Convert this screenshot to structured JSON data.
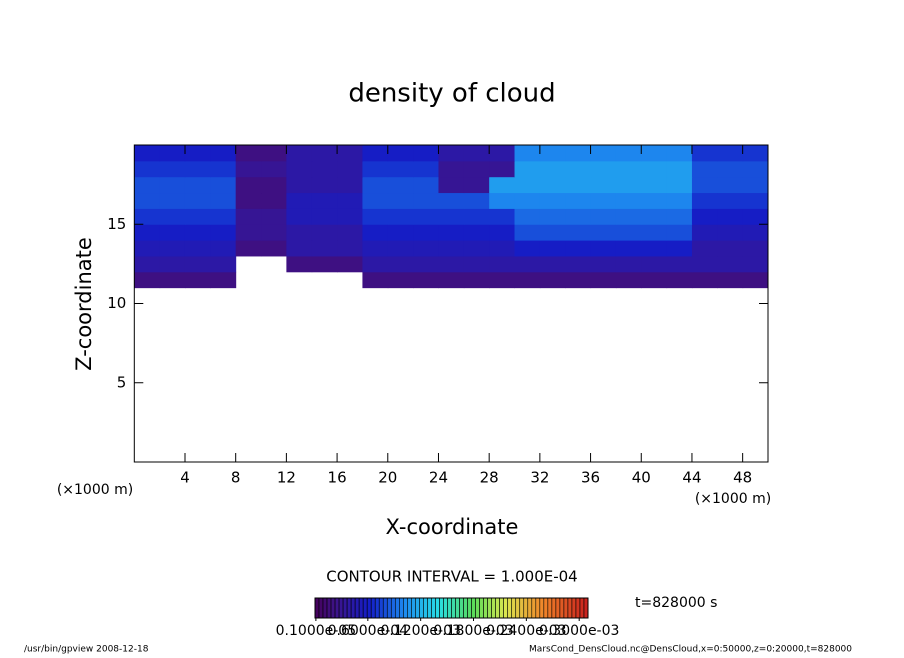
{
  "chart_data": {
    "type": "heatmap",
    "title": "density of cloud",
    "xlabel": "X-coordinate",
    "ylabel": "Z-coordinate",
    "xunit": "(×1000 m)",
    "yunit": "(×1000 m)",
    "xlim": [
      0,
      50
    ],
    "ylim": [
      0,
      20
    ],
    "xticks": [
      4,
      8,
      12,
      16,
      20,
      24,
      28,
      32,
      36,
      40,
      44,
      48
    ],
    "yticks": [
      5,
      10,
      15
    ],
    "x_edges": [
      0,
      2,
      4,
      6,
      8,
      10,
      12,
      14,
      16,
      18,
      20,
      22,
      24,
      26,
      28,
      30,
      32,
      34,
      36,
      38,
      40,
      42,
      44,
      46,
      48,
      50
    ],
    "z_edges": [
      11,
      12,
      13,
      14,
      15,
      16,
      17,
      18,
      19,
      20
    ],
    "values": [
      [
        2e-05,
        2e-05,
        2e-05,
        2e-05,
        null,
        null,
        null,
        null,
        null,
        2e-05,
        2e-05,
        2e-05,
        2e-05,
        2e-05,
        2e-05,
        2e-05,
        2e-05,
        2e-05,
        2e-05,
        2e-05,
        2e-05,
        2e-05,
        2e-05,
        2e-05,
        2e-05
      ],
      [
        4e-05,
        4e-05,
        4e-05,
        4e-05,
        null,
        null,
        2e-05,
        2e-05,
        2e-05,
        4e-05,
        4e-05,
        4e-05,
        4e-05,
        4e-05,
        4e-05,
        4e-05,
        4e-05,
        4e-05,
        4e-05,
        4e-05,
        4e-05,
        4e-05,
        4e-05,
        4e-05,
        4e-05
      ],
      [
        5e-05,
        5e-05,
        5e-05,
        5e-05,
        2e-05,
        2e-05,
        4e-05,
        4e-05,
        4e-05,
        5e-05,
        5e-05,
        5e-05,
        5e-05,
        5e-05,
        5e-05,
        6e-05,
        6e-05,
        6e-05,
        6e-05,
        6e-05,
        6e-05,
        6e-05,
        4e-05,
        4e-05,
        4e-05
      ],
      [
        6e-05,
        6e-05,
        6e-05,
        6e-05,
        3e-05,
        3e-05,
        4e-05,
        4e-05,
        4e-05,
        6e-05,
        6e-05,
        6e-05,
        6e-05,
        6e-05,
        6e-05,
        8e-05,
        8e-05,
        8e-05,
        8e-05,
        8e-05,
        8e-05,
        8e-05,
        5e-05,
        5e-05,
        5e-05
      ],
      [
        7e-05,
        7e-05,
        7e-05,
        7e-05,
        3e-05,
        3e-05,
        5e-05,
        5e-05,
        5e-05,
        7e-05,
        7e-05,
        7e-05,
        7e-05,
        7e-05,
        7e-05,
        9e-05,
        9e-05,
        9e-05,
        9e-05,
        9e-05,
        9e-05,
        9e-05,
        6e-05,
        6e-05,
        6e-05
      ],
      [
        8e-05,
        8e-05,
        8e-05,
        8e-05,
        2e-05,
        2e-05,
        5e-05,
        5e-05,
        5e-05,
        8e-05,
        8e-05,
        8e-05,
        8e-05,
        8e-05,
        0.0001,
        0.0001,
        0.0001,
        0.0001,
        0.0001,
        0.0001,
        0.0001,
        0.0001,
        7e-05,
        7e-05,
        7e-05
      ],
      [
        8e-05,
        8e-05,
        8e-05,
        8e-05,
        2e-05,
        2e-05,
        4e-05,
        4e-05,
        4e-05,
        8e-05,
        8e-05,
        8e-05,
        3e-05,
        3e-05,
        0.00011,
        0.00011,
        0.00011,
        0.00011,
        0.00011,
        0.00011,
        0.00011,
        0.00011,
        8e-05,
        8e-05,
        8e-05
      ],
      [
        7e-05,
        7e-05,
        7e-05,
        7e-05,
        3e-05,
        3e-05,
        4e-05,
        4e-05,
        4e-05,
        7e-05,
        7e-05,
        7e-05,
        3e-05,
        3e-05,
        3e-05,
        0.00011,
        0.00011,
        0.00011,
        0.00011,
        0.00011,
        0.00011,
        0.00011,
        8e-05,
        8e-05,
        8e-05
      ],
      [
        6e-05,
        6e-05,
        6e-05,
        6e-05,
        2e-05,
        2e-05,
        4e-05,
        4e-05,
        4e-05,
        6e-05,
        6e-05,
        6e-05,
        4e-05,
        4e-05,
        4e-05,
        0.0001,
        0.0001,
        0.0001,
        0.0001,
        0.0001,
        0.0001,
        0.0001,
        7e-05,
        7e-05,
        7e-05
      ]
    ],
    "clim": [
      0,
      0.00031
    ],
    "colorbar_ticks": [
      {
        "value": 1e-06,
        "label": "0.1000e-05"
      },
      {
        "value": 6e-05,
        "label": "0.6000e-04"
      },
      {
        "value": 0.00012,
        "label": "0.1200e-03"
      },
      {
        "value": 0.00018,
        "label": "0.1800e-03"
      },
      {
        "value": 0.00024,
        "label": "0.2400e-03"
      },
      {
        "value": 0.0003,
        "label": "0.3000e-03"
      }
    ],
    "contour_interval": "CONTOUR INTERVAL = 1.000E-04",
    "time_label": "t=828000 s",
    "footer_left": "/usr/bin/gpview   2008-12-18",
    "footer_right": "MarsCond_DensCloud.nc@DensCloud,x=0:50000,z=0:20000,t=828000"
  }
}
